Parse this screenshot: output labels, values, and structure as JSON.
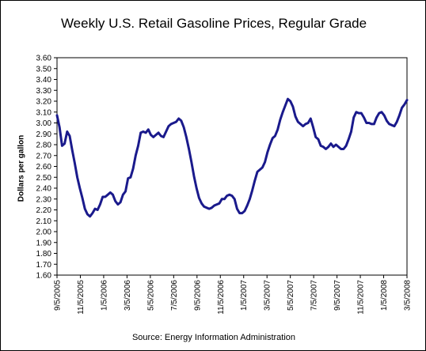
{
  "chart_data": {
    "type": "line",
    "title": "Weekly U.S. Retail Gasoline Prices, Regular Grade",
    "xlabel": "",
    "ylabel": "Dollars per gallon",
    "source": "Source:  Energy Information Administration",
    "ylim": [
      1.6,
      3.6
    ],
    "ystep": 0.1,
    "y_tick_labels": [
      "1.60",
      "1.70",
      "1.80",
      "1.90",
      "2.00",
      "2.10",
      "2.20",
      "2.30",
      "2.40",
      "2.50",
      "2.60",
      "2.70",
      "2.80",
      "2.90",
      "3.00",
      "3.10",
      "3.20",
      "3.30",
      "3.40",
      "3.50",
      "3.60"
    ],
    "x_tick_labels": [
      "9/5/2005",
      "11/5/2005",
      "1/5/2006",
      "3/5/2006",
      "5/5/2006",
      "7/5/2006",
      "9/5/2006",
      "11/5/2006",
      "1/5/2007",
      "3/5/2007",
      "5/5/2007",
      "7/5/2007",
      "9/5/2007",
      "11/5/2007",
      "1/5/2008",
      "3/5/2008"
    ],
    "grid": false,
    "legend": "none",
    "line_color": "#1a1a8c",
    "series": [
      {
        "values": [
          3.07,
          2.96,
          2.79,
          2.81,
          2.92,
          2.88,
          2.75,
          2.63,
          2.5,
          2.4,
          2.31,
          2.21,
          2.16,
          2.14,
          2.17,
          2.21,
          2.2,
          2.25,
          2.32,
          2.32,
          2.34,
          2.36,
          2.34,
          2.28,
          2.25,
          2.27,
          2.34,
          2.37,
          2.49,
          2.5,
          2.58,
          2.7,
          2.79,
          2.91,
          2.92,
          2.91,
          2.94,
          2.89,
          2.87,
          2.89,
          2.91,
          2.88,
          2.87,
          2.92,
          2.97,
          2.99,
          3.0,
          3.01,
          3.04,
          3.02,
          2.96,
          2.87,
          2.76,
          2.64,
          2.51,
          2.4,
          2.31,
          2.26,
          2.23,
          2.22,
          2.21,
          2.22,
          2.24,
          2.25,
          2.26,
          2.3,
          2.3,
          2.33,
          2.34,
          2.33,
          2.3,
          2.21,
          2.17,
          2.17,
          2.19,
          2.24,
          2.3,
          2.38,
          2.47,
          2.55,
          2.57,
          2.59,
          2.64,
          2.73,
          2.8,
          2.86,
          2.88,
          2.94,
          3.03,
          3.1,
          3.16,
          3.22,
          3.2,
          3.15,
          3.06,
          3.01,
          2.99,
          2.97,
          2.99,
          3.0,
          3.04,
          2.96,
          2.87,
          2.85,
          2.79,
          2.78,
          2.76,
          2.78,
          2.81,
          2.78,
          2.8,
          2.78,
          2.76,
          2.76,
          2.79,
          2.85,
          2.92,
          3.05,
          3.1,
          3.09,
          3.09,
          3.05,
          3.0,
          3.0,
          2.99,
          2.99,
          3.05,
          3.09,
          3.1,
          3.07,
          3.02,
          2.99,
          2.98,
          2.97,
          3.01,
          3.07,
          3.14,
          3.17,
          3.21
        ]
      }
    ]
  }
}
